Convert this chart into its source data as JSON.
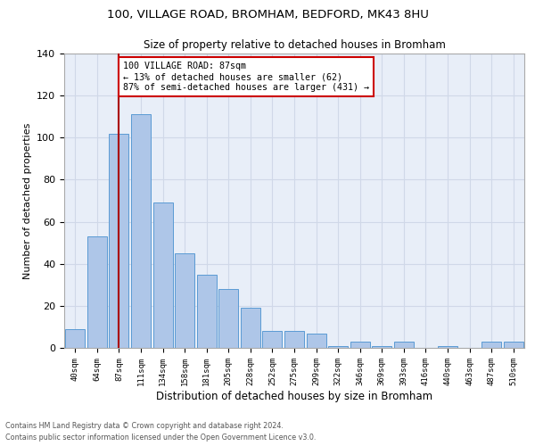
{
  "title_line1": "100, VILLAGE ROAD, BROMHAM, BEDFORD, MK43 8HU",
  "title_line2": "Size of property relative to detached houses in Bromham",
  "xlabel": "Distribution of detached houses by size in Bromham",
  "ylabel": "Number of detached properties",
  "bar_labels": [
    "40sqm",
    "64sqm",
    "87sqm",
    "111sqm",
    "134sqm",
    "158sqm",
    "181sqm",
    "205sqm",
    "228sqm",
    "252sqm",
    "275sqm",
    "299sqm",
    "322sqm",
    "346sqm",
    "369sqm",
    "393sqm",
    "416sqm",
    "440sqm",
    "463sqm",
    "487sqm",
    "510sqm"
  ],
  "bar_values": [
    9,
    53,
    102,
    111,
    69,
    45,
    35,
    28,
    19,
    8,
    8,
    7,
    1,
    3,
    1,
    3,
    0,
    1,
    0,
    3,
    3
  ],
  "bar_color": "#aec6e8",
  "bar_edge_color": "#5a9bd4",
  "grid_color": "#d0d8e8",
  "background_color": "#e8eef8",
  "vline_x": 2,
  "vline_color": "#aa0000",
  "annotation_text": "100 VILLAGE ROAD: 87sqm\n← 13% of detached houses are smaller (62)\n87% of semi-detached houses are larger (431) →",
  "annotation_box_color": "#ffffff",
  "annotation_box_edge_color": "#cc0000",
  "ylim": [
    0,
    140
  ],
  "yticks": [
    0,
    20,
    40,
    60,
    80,
    100,
    120,
    140
  ],
  "footer_line1": "Contains HM Land Registry data © Crown copyright and database right 2024.",
  "footer_line2": "Contains public sector information licensed under the Open Government Licence v3.0."
}
